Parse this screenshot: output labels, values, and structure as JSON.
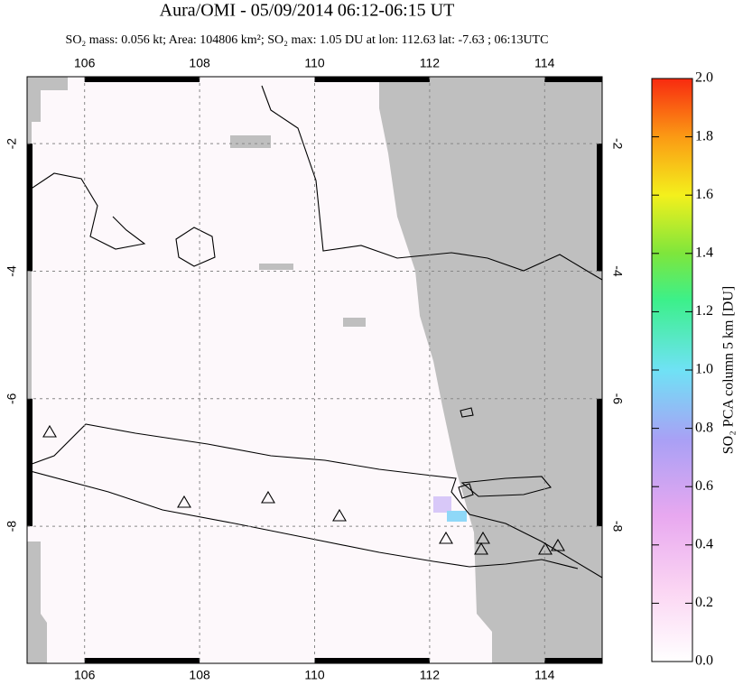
{
  "title": "Aura/OMI - 05/09/2014 06:12-06:15 UT",
  "subtitle": "SO₂ mass: 0.056 kt; Area: 104806 km²; SO₂ max: 1.05 DU at lon: 112.63 lat: -7.63 ; 06:13UTC",
  "map": {
    "xlim": [
      105,
      115
    ],
    "ylim": [
      -10.15,
      -0.95
    ],
    "xticks": [
      106,
      108,
      110,
      112,
      114
    ],
    "yticks": [
      -2,
      -4,
      -6,
      -8
    ],
    "grid": true
  },
  "colorbar": {
    "label": "SO₂ PCA column 5 km [DU]",
    "lim": [
      0,
      2
    ],
    "ticks": [
      {
        "value": 0,
        "label": "0.0"
      },
      {
        "value": 0.2,
        "label": "0.2"
      },
      {
        "value": 0.4,
        "label": "0.4"
      },
      {
        "value": 0.6,
        "label": "0.6"
      },
      {
        "value": 0.8,
        "label": "0.8"
      },
      {
        "value": 1,
        "label": "1.0"
      },
      {
        "value": 1.2,
        "label": "1.2"
      },
      {
        "value": 1.4,
        "label": "1.4"
      },
      {
        "value": 1.6,
        "label": "1.6"
      },
      {
        "value": 1.8,
        "label": "1.8"
      },
      {
        "value": 2,
        "label": "2.0"
      }
    ]
  }
}
